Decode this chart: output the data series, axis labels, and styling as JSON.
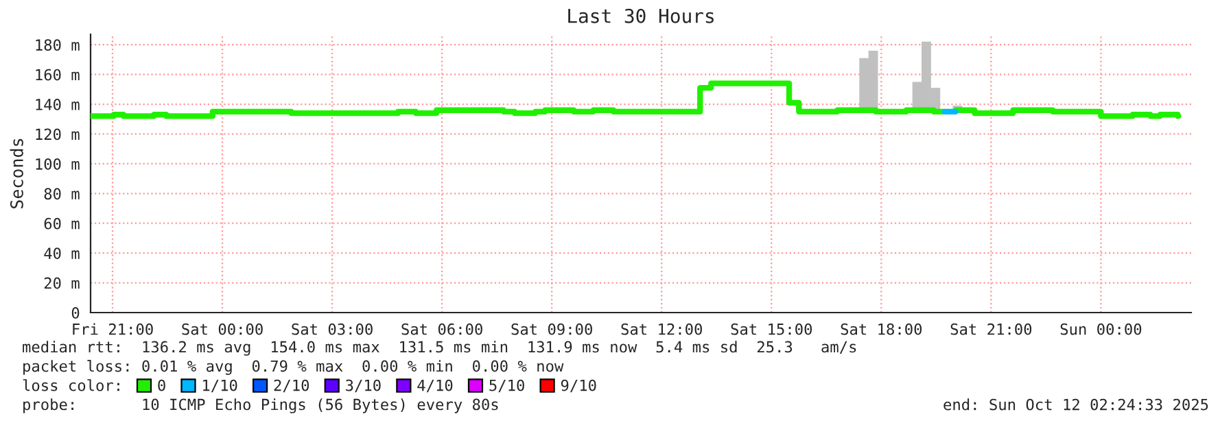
{
  "chart_data": {
    "type": "step",
    "title": "Last 30 Hours",
    "ylabel": "Seconds",
    "xlim": [
      "2025-10-10T20:24",
      "2025-10-12T02:28"
    ],
    "xticks": [
      {
        "value": "2025-10-10T21:00",
        "label": "Fri 21:00"
      },
      {
        "value": "2025-10-11T00:00",
        "label": "Sat 00:00"
      },
      {
        "value": "2025-10-11T03:00",
        "label": "Sat 03:00"
      },
      {
        "value": "2025-10-11T06:00",
        "label": "Sat 06:00"
      },
      {
        "value": "2025-10-11T09:00",
        "label": "Sat 09:00"
      },
      {
        "value": "2025-10-11T12:00",
        "label": "Sat 12:00"
      },
      {
        "value": "2025-10-11T15:00",
        "label": "Sat 15:00"
      },
      {
        "value": "2025-10-11T18:00",
        "label": "Sat 18:00"
      },
      {
        "value": "2025-10-11T21:00",
        "label": "Sat 21:00"
      },
      {
        "value": "2025-10-12T00:00",
        "label": "Sun 00:00"
      }
    ],
    "ylim": [
      0,
      187
    ],
    "yticks": [
      0,
      {
        "value": 20,
        "label": "20 m"
      },
      {
        "value": 40,
        "label": "40 m"
      },
      {
        "value": 60,
        "label": "60 m"
      },
      {
        "value": 80,
        "label": "80 m"
      },
      {
        "value": 100,
        "label": "100 m"
      },
      {
        "value": 120,
        "label": "120 m"
      },
      {
        "value": 140,
        "label": "140 m"
      },
      {
        "value": 160,
        "label": "160 m"
      },
      {
        "value": 180,
        "label": "180 m"
      }
    ],
    "grid": true,
    "legend": "bottom",
    "legend_title": "loss color:",
    "series": [
      {
        "type": "bar",
        "color": "#c0c0c0",
        "x": [
          "2025-10-11T17:24",
          "2025-10-11T17:39",
          "2025-10-11T18:51",
          "2025-10-11T19:06",
          "2025-10-11T19:21",
          "2025-10-11T19:57"
        ],
        "values": [
          37,
          42,
          21,
          48,
          17,
          2
        ],
        "base": [
          134,
          134,
          134,
          134,
          134,
          137
        ]
      },
      {
        "name": "0",
        "color": "#20f000",
        "x": [
          "2025-10-10T20:24",
          "2025-10-10T21:02",
          "2025-10-10T21:18",
          "2025-10-10T22:08",
          "2025-10-10T22:28",
          "2025-10-10T23:44",
          "2025-10-11T01:53",
          "2025-10-11T04:48",
          "2025-10-11T05:17",
          "2025-10-11T05:51",
          "2025-10-11T06:41",
          "2025-10-11T07:41",
          "2025-10-11T07:59",
          "2025-10-11T08:33",
          "2025-10-11T08:49",
          "2025-10-11T09:36",
          "2025-10-11T10:08",
          "2025-10-11T10:41",
          "2025-10-11T10:59",
          "2025-10-11T13:03",
          "2025-10-11T13:21",
          "2025-10-11T15:29",
          "2025-10-11T15:45",
          "2025-10-11T16:48",
          "2025-10-11T17:51",
          "2025-10-11T18:41",
          "2025-10-11T19:26",
          "2025-10-11T19:44",
          "2025-10-11T20:02",
          "2025-10-11T20:33",
          "2025-10-11T21:36",
          "2025-10-11T22:41",
          "2025-10-12T00:00",
          "2025-10-12T00:52",
          "2025-10-12T01:21",
          "2025-10-12T01:37",
          "2025-10-12T02:06",
          "2025-10-12T02:07"
        ],
        "values": [
          132,
          133,
          132,
          133,
          132,
          135,
          134,
          135,
          134,
          136,
          136,
          135,
          134,
          135,
          136,
          135,
          136,
          135,
          135,
          151,
          154,
          141,
          135,
          136,
          135,
          136,
          135,
          null,
          136,
          134,
          136,
          135,
          132,
          133,
          132,
          133,
          132,
          132
        ]
      },
      {
        "name": "1/10",
        "color": "#00b8ff",
        "x": [
          "2025-10-11T19:44",
          "2025-10-11T20:02"
        ],
        "values": [
          135,
          135
        ]
      },
      {
        "name": "2/10",
        "color": "#0059ff"
      },
      {
        "name": "3/10",
        "color": "#5e00ff"
      },
      {
        "name": "4/10",
        "color": "#7e00ff"
      },
      {
        "name": "5/10",
        "color": "#dd00ff"
      },
      {
        "name": "9/10",
        "color": "#ff0000"
      }
    ],
    "annotations": [
      "median rtt:  136.2 ms avg  154.0 ms max  131.5 ms min  131.9 ms now  5.4 ms sd  25.3   am/s",
      "packet loss: 0.01 % avg  0.79 % max  0.00 % min  0.00 % now",
      "probe:       10 ICMP Echo Pings (56 Bytes) every 80s",
      "end: Sun Oct 12 02:24:33 2025"
    ]
  }
}
